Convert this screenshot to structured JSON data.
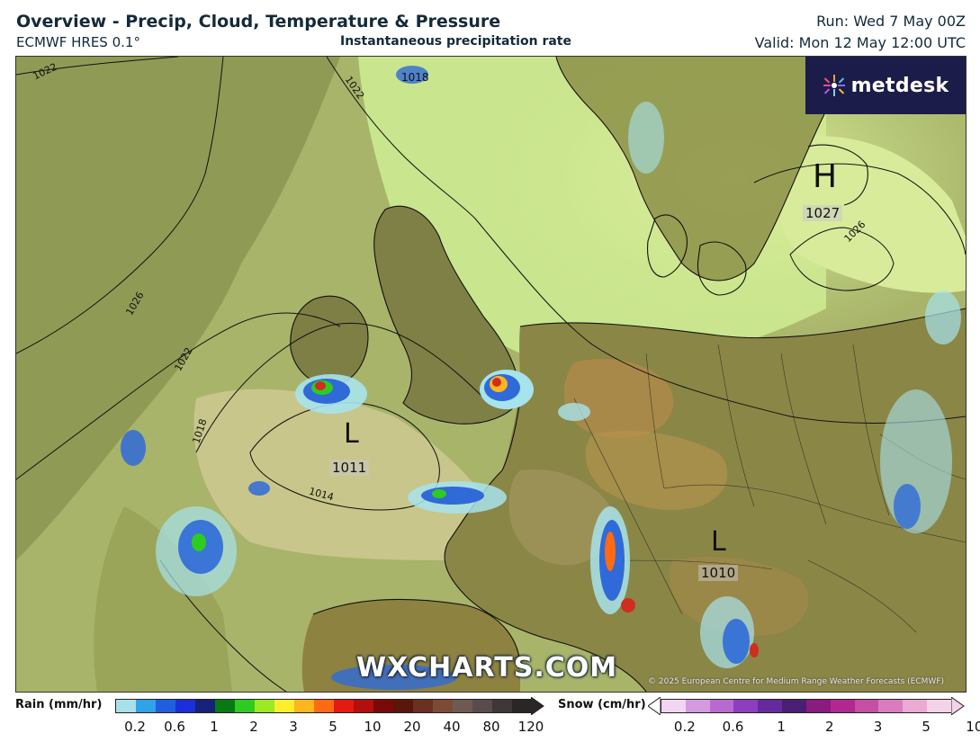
{
  "header": {
    "title": "Overview - Precip, Cloud, Temperature & Pressure",
    "subtitle": "ECMWF HRES 0.1°",
    "layer": "Instantaneous precipitation rate",
    "run": "Run: Wed 7 May 00Z",
    "valid": "Valid: Mon 12 May 12:00 UTC"
  },
  "logo": {
    "text": "metdesk"
  },
  "map": {
    "watermark": "WXCHARTS.COM",
    "copyright": "© 2025 European Centre for Medium Range Weather Forecasts (ECMWF)",
    "pressure_centres": [
      {
        "type": "H",
        "value": "1027"
      },
      {
        "type": "L",
        "value": "1011"
      },
      {
        "type": "L",
        "value": "1010"
      },
      {
        "type": "",
        "value": "1018"
      }
    ],
    "isobar_labels": [
      "1022",
      "1022",
      "1026",
      "1022",
      "1018",
      "1014",
      "1026"
    ],
    "colors": {
      "land_dark": "#7f8a46",
      "land_mid": "#9aa55a",
      "sea_clear": "#c9e58e",
      "cloud": "#b2bf78",
      "precip_light": "#a7e3ec",
      "precip_blue": "#2f6ad8",
      "precip_heavy": "#d02d1f",
      "coastline": "#111111",
      "isobar": "#111111",
      "logo_bg": "#1c1c4a"
    }
  },
  "legend": {
    "rain": {
      "label": "Rain (mm/hr)",
      "ticks": [
        "0.2",
        "0.6",
        "1",
        "2",
        "3",
        "5",
        "10",
        "20",
        "40",
        "80",
        "120"
      ],
      "colors": [
        "#a8e1ea",
        "#2ea3e7",
        "#1e5fe0",
        "#1b2fd8",
        "#17217a",
        "#087a14",
        "#2ecc21",
        "#9be823",
        "#ffef2a",
        "#ffb51c",
        "#ff6a14",
        "#e51a12",
        "#b30f0c",
        "#7a0a07",
        "#5a1608",
        "#6b3020",
        "#7d4a36",
        "#6e5a52",
        "#5a4c4c",
        "#3e3838",
        "#2a2626"
      ]
    },
    "snow": {
      "label": "Snow (cm/hr)",
      "ticks": [
        "0.2",
        "0.6",
        "1",
        "2",
        "3",
        "5",
        "10"
      ],
      "colors": [
        "#f3d4f1",
        "#d39ae0",
        "#b86ad0",
        "#8d3dbf",
        "#672a9e",
        "#4a1f73",
        "#8a1b7f",
        "#b2288f",
        "#c64ea4",
        "#d97bbd",
        "#eaaad4",
        "#f4d2e8"
      ]
    }
  }
}
